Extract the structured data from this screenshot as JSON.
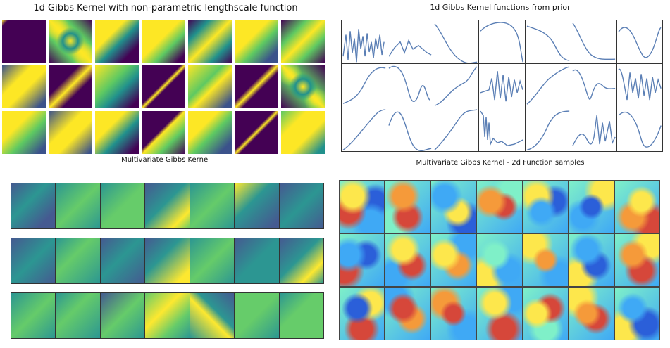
{
  "titles": {
    "top_left": "1d Gibbs Kernel with non-parametric lengthscale function",
    "top_right": "1d Gibbs Kernel functions from prior",
    "bottom_left": "Multivariate Gibbs Kernel",
    "bottom_right": "Multivariate Gibbs Kernel - 2d Function samples"
  },
  "colormaps": {
    "viridis": [
      "#440154",
      "#3b528b",
      "#21918c",
      "#5ec962",
      "#fde725"
    ],
    "jet": [
      "#2b5fd9",
      "#3fa9f5",
      "#7ff0c8",
      "#fde74c",
      "#f59a3a",
      "#d6473a"
    ],
    "line_color": "#5b7fb5"
  }
}
